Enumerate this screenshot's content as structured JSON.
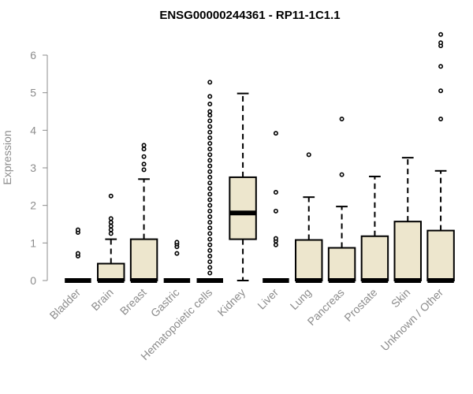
{
  "chart_data": {
    "type": "boxplot",
    "title": "ENSG00000244361 - RP11-1C1.1",
    "xlabel": "",
    "ylabel": "Expression",
    "ylim": [
      0,
      6.6
    ],
    "yticks": [
      0,
      1,
      2,
      3,
      4,
      5,
      6
    ],
    "grid": false,
    "legend": "none",
    "colors": {
      "box_fill": "#ede6cd",
      "box_stroke": "#000000",
      "axis": "#8c8c8c",
      "text": "#8c8c8c",
      "title": "#000000"
    },
    "categories": [
      "Bladder",
      "Brain",
      "Breast",
      "Gastric",
      "Hematopoietic cells",
      "Kidney",
      "Liver",
      "Lung",
      "Pancreas",
      "Prostate",
      "Skin",
      "Unknown / Other"
    ],
    "boxes": [
      {
        "category": "Bladder",
        "q1": 0,
        "median": 0,
        "q3": 0,
        "whisker_low": 0,
        "whisker_high": 0,
        "outliers": [
          0.65,
          0.72,
          1.28,
          1.35
        ]
      },
      {
        "category": "Brain",
        "q1": 0,
        "median": 0,
        "q3": 0.45,
        "whisker_low": 0,
        "whisker_high": 1.1,
        "outliers": [
          1.25,
          1.35,
          1.45,
          1.55,
          1.65,
          2.25
        ]
      },
      {
        "category": "Breast",
        "q1": 0,
        "median": 0,
        "q3": 1.1,
        "whisker_low": 0,
        "whisker_high": 2.7,
        "outliers": [
          2.95,
          3.1,
          3.3,
          3.5,
          3.6
        ]
      },
      {
        "category": "Gastric",
        "q1": 0,
        "median": 0,
        "q3": 0,
        "whisker_low": 0,
        "whisker_high": 0,
        "outliers": [
          0.72,
          0.9,
          0.97,
          1.02
        ]
      },
      {
        "category": "Hematopoietic cells",
        "q1": 0,
        "median": 0,
        "q3": 0,
        "whisker_low": 0,
        "whisker_high": 0,
        "outliers": [
          0.2,
          0.35,
          0.5,
          0.65,
          0.8,
          0.95,
          1.1,
          1.25,
          1.4,
          1.55,
          1.7,
          1.85,
          2.0,
          2.15,
          2.3,
          2.45,
          2.6,
          2.75,
          2.9,
          3.05,
          3.2,
          3.35,
          3.5,
          3.65,
          3.8,
          3.95,
          4.1,
          4.25,
          4.4,
          4.5,
          4.7,
          4.9,
          5.28
        ]
      },
      {
        "category": "Kidney",
        "q1": 1.1,
        "median": 1.8,
        "q3": 2.75,
        "whisker_low": 0,
        "whisker_high": 4.98,
        "outliers": []
      },
      {
        "category": "Liver",
        "q1": 0,
        "median": 0,
        "q3": 0,
        "whisker_low": 0,
        "whisker_high": 0,
        "outliers": [
          0.95,
          1.05,
          1.12,
          1.85,
          2.35,
          3.92
        ]
      },
      {
        "category": "Lung",
        "q1": 0,
        "median": 0,
        "q3": 1.08,
        "whisker_low": 0,
        "whisker_high": 2.22,
        "outliers": [
          3.35
        ]
      },
      {
        "category": "Pancreas",
        "q1": 0,
        "median": 0,
        "q3": 0.87,
        "whisker_low": 0,
        "whisker_high": 1.97,
        "outliers": [
          2.82,
          4.3
        ]
      },
      {
        "category": "Prostate",
        "q1": 0,
        "median": 0,
        "q3": 1.18,
        "whisker_low": 0,
        "whisker_high": 2.77,
        "outliers": []
      },
      {
        "category": "Skin",
        "q1": 0,
        "median": 0,
        "q3": 1.57,
        "whisker_low": 0,
        "whisker_high": 3.27,
        "outliers": []
      },
      {
        "category": "Unknown / Other",
        "q1": 0,
        "median": 0,
        "q3": 1.33,
        "whisker_low": 0,
        "whisker_high": 2.92,
        "outliers": [
          4.3,
          5.05,
          5.7,
          6.25,
          6.33,
          6.55
        ]
      }
    ]
  }
}
